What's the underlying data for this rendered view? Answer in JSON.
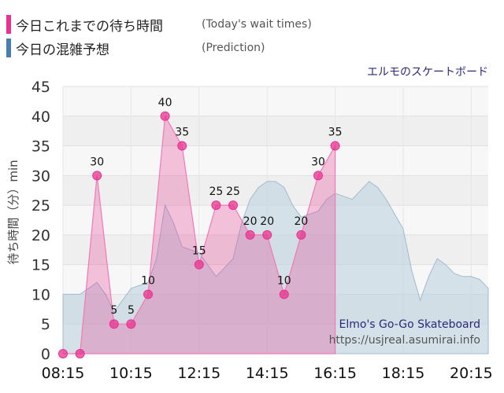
{
  "legend": [
    {
      "label": "今日これまでの待ち時間",
      "sub": "(Today's wait times)",
      "color": "#e8338f"
    },
    {
      "label": "今日の混雑予想",
      "sub": "(Prediction)",
      "color": "#4a7fad"
    }
  ],
  "attraction_name": "エルモのスケートボード",
  "attraction_name_en": "Elmo's Go-Go Skateboard",
  "source_url": "https://usjreal.asumirai.info",
  "chart_data": {
    "type": "line",
    "title": "",
    "ylabel": "待ち時間（分）min",
    "xlabel": "",
    "ylim": [
      0,
      45
    ],
    "yticks": [
      0,
      5,
      10,
      15,
      20,
      25,
      30,
      35,
      40,
      45
    ],
    "xticks": [
      "08:15",
      "10:15",
      "12:15",
      "14:15",
      "16:15",
      "18:15",
      "20:15"
    ],
    "grid": true,
    "series": [
      {
        "name": "今日これまでの待ち時間",
        "color": "#e8338f",
        "x": [
          "08:15",
          "08:45",
          "09:15",
          "09:45",
          "10:15",
          "10:45",
          "11:15",
          "11:45",
          "12:15",
          "12:45",
          "13:15",
          "13:45",
          "14:15",
          "14:45",
          "15:15",
          "15:45",
          "16:15"
        ],
        "values": [
          0,
          0,
          30,
          5,
          5,
          10,
          40,
          35,
          15,
          25,
          25,
          20,
          20,
          10,
          20,
          30,
          35
        ],
        "data_labels": [
          "",
          "",
          "30",
          "5",
          "5",
          "10",
          "40",
          "35",
          "15",
          "25",
          "25",
          "20",
          "20",
          "10",
          "20",
          "30",
          "35"
        ]
      },
      {
        "name": "今日の混雑予想",
        "color": "#9fbbd0",
        "x": [
          "08:15",
          "08:45",
          "09:15",
          "09:30",
          "09:45",
          "10:15",
          "10:45",
          "11:00",
          "11:15",
          "11:30",
          "11:45",
          "12:15",
          "12:45",
          "13:15",
          "13:30",
          "13:45",
          "14:00",
          "14:15",
          "14:30",
          "14:45",
          "15:00",
          "15:15",
          "15:45",
          "16:00",
          "16:15",
          "16:30",
          "16:45",
          "17:00",
          "17:15",
          "17:30",
          "17:45",
          "18:15",
          "18:30",
          "18:45",
          "19:00",
          "19:15",
          "19:30",
          "19:45",
          "20:00",
          "20:15",
          "20:30",
          "20:45"
        ],
        "values": [
          10,
          10,
          12,
          10,
          7,
          11,
          12,
          16,
          25,
          22,
          18,
          17,
          13,
          16,
          22,
          26,
          28,
          29,
          29,
          28,
          25,
          23,
          24,
          26,
          27,
          26.5,
          26,
          27.5,
          29,
          28,
          26,
          21,
          14,
          9,
          13,
          16,
          15,
          13.5,
          13,
          13,
          12.5,
          11
        ]
      }
    ]
  }
}
